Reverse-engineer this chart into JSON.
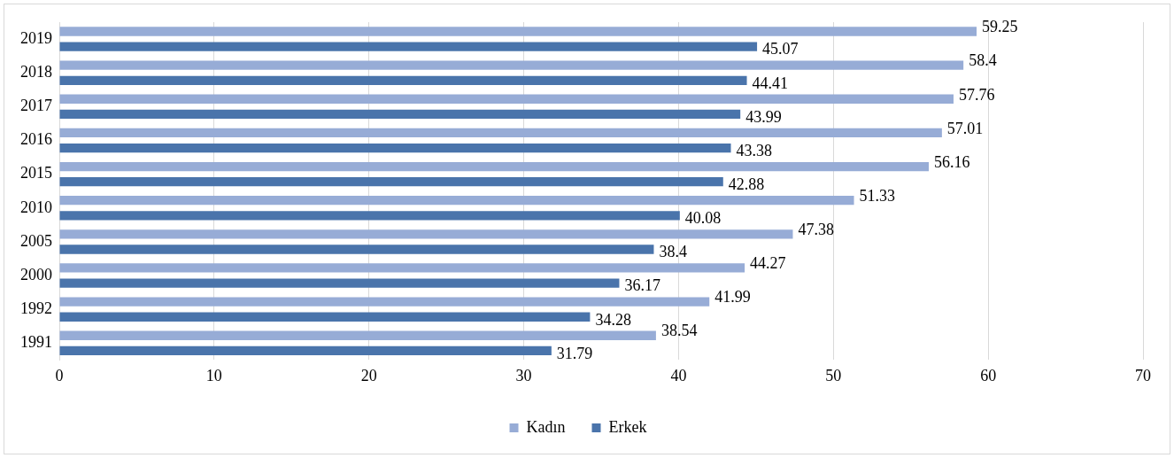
{
  "chart_data": {
    "type": "bar",
    "orientation": "horizontal",
    "categories": [
      "2019",
      "2018",
      "2017",
      "2016",
      "2015",
      "2010",
      "2005",
      "2000",
      "1992",
      "1991"
    ],
    "series": [
      {
        "name": "Kadın",
        "color": "#97acd6",
        "values": [
          59.25,
          58.4,
          57.76,
          57.01,
          56.16,
          51.33,
          47.38,
          44.27,
          41.99,
          38.54
        ]
      },
      {
        "name": "Erkek",
        "color": "#4a74ab",
        "values": [
          45.07,
          44.41,
          43.99,
          43.38,
          42.88,
          40.08,
          38.4,
          36.17,
          34.28,
          31.79
        ]
      }
    ],
    "xlim": [
      0,
      70
    ],
    "xticks": [
      0,
      10,
      20,
      30,
      40,
      50,
      60,
      70
    ],
    "grid": "x",
    "legend": "bottom",
    "data_labels": true
  }
}
